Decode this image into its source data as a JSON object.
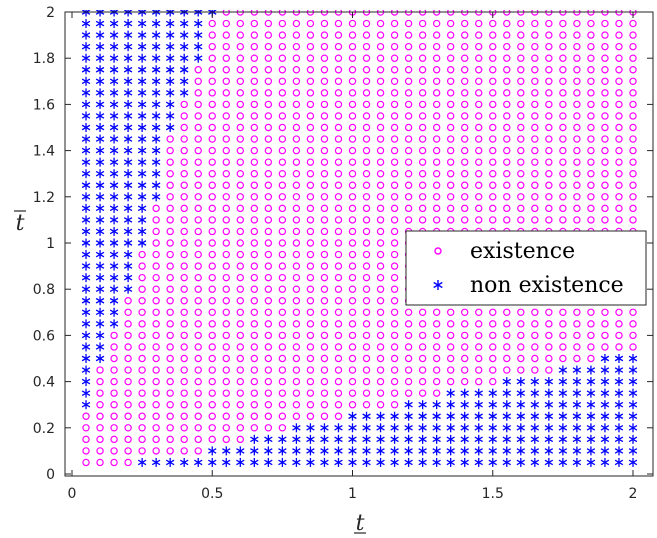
{
  "chart_data": {
    "type": "scatter",
    "xlabel": "t",
    "ylabel": "t",
    "xlim": [
      0,
      2
    ],
    "ylim": [
      0,
      2
    ],
    "xticks": [
      "0",
      "0.5",
      "1",
      "1.5",
      "2"
    ],
    "yticks": [
      "0",
      "0.2",
      "0.4",
      "0.6",
      "0.8",
      "1",
      "1.2",
      "1.4",
      "1.6",
      "1.8",
      "2"
    ],
    "grid_step": 0.05,
    "grid_range": [
      0.05,
      2.0
    ],
    "legend_position": "center-right",
    "series": [
      {
        "name": "existence",
        "marker": "circle",
        "color": "#ff00ff",
        "rule": "all grid points not in the non existence set"
      },
      {
        "name": "non existence",
        "marker": "asterisk",
        "color": "#0000ff",
        "boundary_region_1": {
          "description": "small t: for each t, points with t-bar at or above the listed value",
          "t": [
            0.05,
            0.1,
            0.15,
            0.2,
            0.25,
            0.3,
            0.35,
            0.4,
            0.45,
            0.5
          ],
          "tbar_min": [
            0.3,
            0.5,
            0.65,
            0.8,
            1.0,
            1.2,
            1.5,
            1.65,
            1.8,
            2.0
          ]
        },
        "boundary_region_2": {
          "description": "small t-bar: for each t, points with t-bar at or below the listed value",
          "t": [
            0.25,
            0.3,
            0.35,
            0.4,
            0.45,
            0.5,
            0.55,
            0.6,
            0.65,
            0.7,
            0.75,
            0.8,
            0.85,
            0.9,
            0.95,
            1.0,
            1.05,
            1.1,
            1.15,
            1.2,
            1.25,
            1.3,
            1.35,
            1.4,
            1.45,
            1.5,
            1.55,
            1.6,
            1.65,
            1.7,
            1.75,
            1.8,
            1.85,
            1.9,
            1.95,
            2.0
          ],
          "tbar_max": [
            0.05,
            0.05,
            0.05,
            0.05,
            0.05,
            0.1,
            0.1,
            0.1,
            0.15,
            0.15,
            0.15,
            0.2,
            0.2,
            0.2,
            0.2,
            0.25,
            0.25,
            0.25,
            0.25,
            0.3,
            0.3,
            0.3,
            0.35,
            0.35,
            0.35,
            0.35,
            0.4,
            0.4,
            0.4,
            0.4,
            0.45,
            0.45,
            0.45,
            0.5,
            0.5,
            0.5
          ]
        }
      }
    ]
  }
}
